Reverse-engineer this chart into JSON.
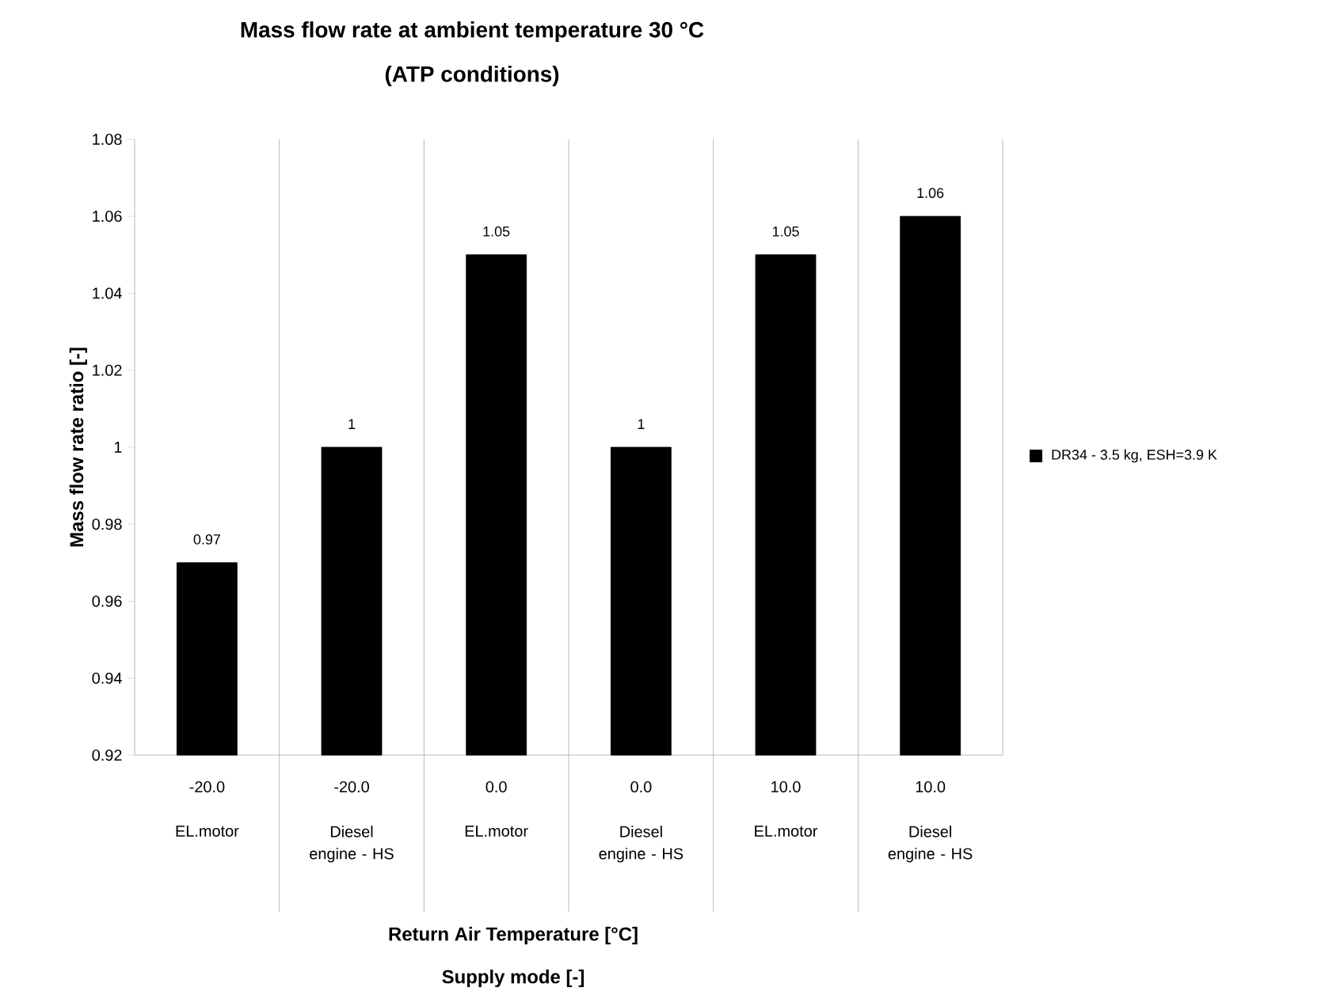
{
  "chart_data": {
    "type": "bar",
    "title": "Mass flow rate at ambient temperature 30 °C",
    "subtitle": "(ATP conditions)",
    "ylabel": "Mass flow rate ratio  [-]",
    "categories": [
      "-20.0",
      "-20.0",
      "0.0",
      "0.0",
      "10.0",
      "10.0"
    ],
    "annotations": [
      "EL.motor",
      "Diesel engine - HS",
      "EL.motor",
      "Diesel engine - HS",
      "EL.motor",
      "Diesel engine - HS",
      "Return Air Temperature  [°C]",
      "Supply mode  [-]"
    ],
    "series": [
      {
        "name": "DR34 - 3.5 kg, ESH=3.9 K",
        "color": "#000000",
        "values": [
          0.97,
          1,
          1.05,
          1,
          1.05,
          1.06
        ]
      }
    ],
    "ylim": [
      0.92,
      1.08
    ],
    "yticks": [
      0.92,
      0.94,
      0.96,
      0.98,
      1,
      1.02,
      1.04,
      1.06,
      1.08
    ],
    "data_labels": true,
    "grid": "x",
    "legend": "right"
  }
}
